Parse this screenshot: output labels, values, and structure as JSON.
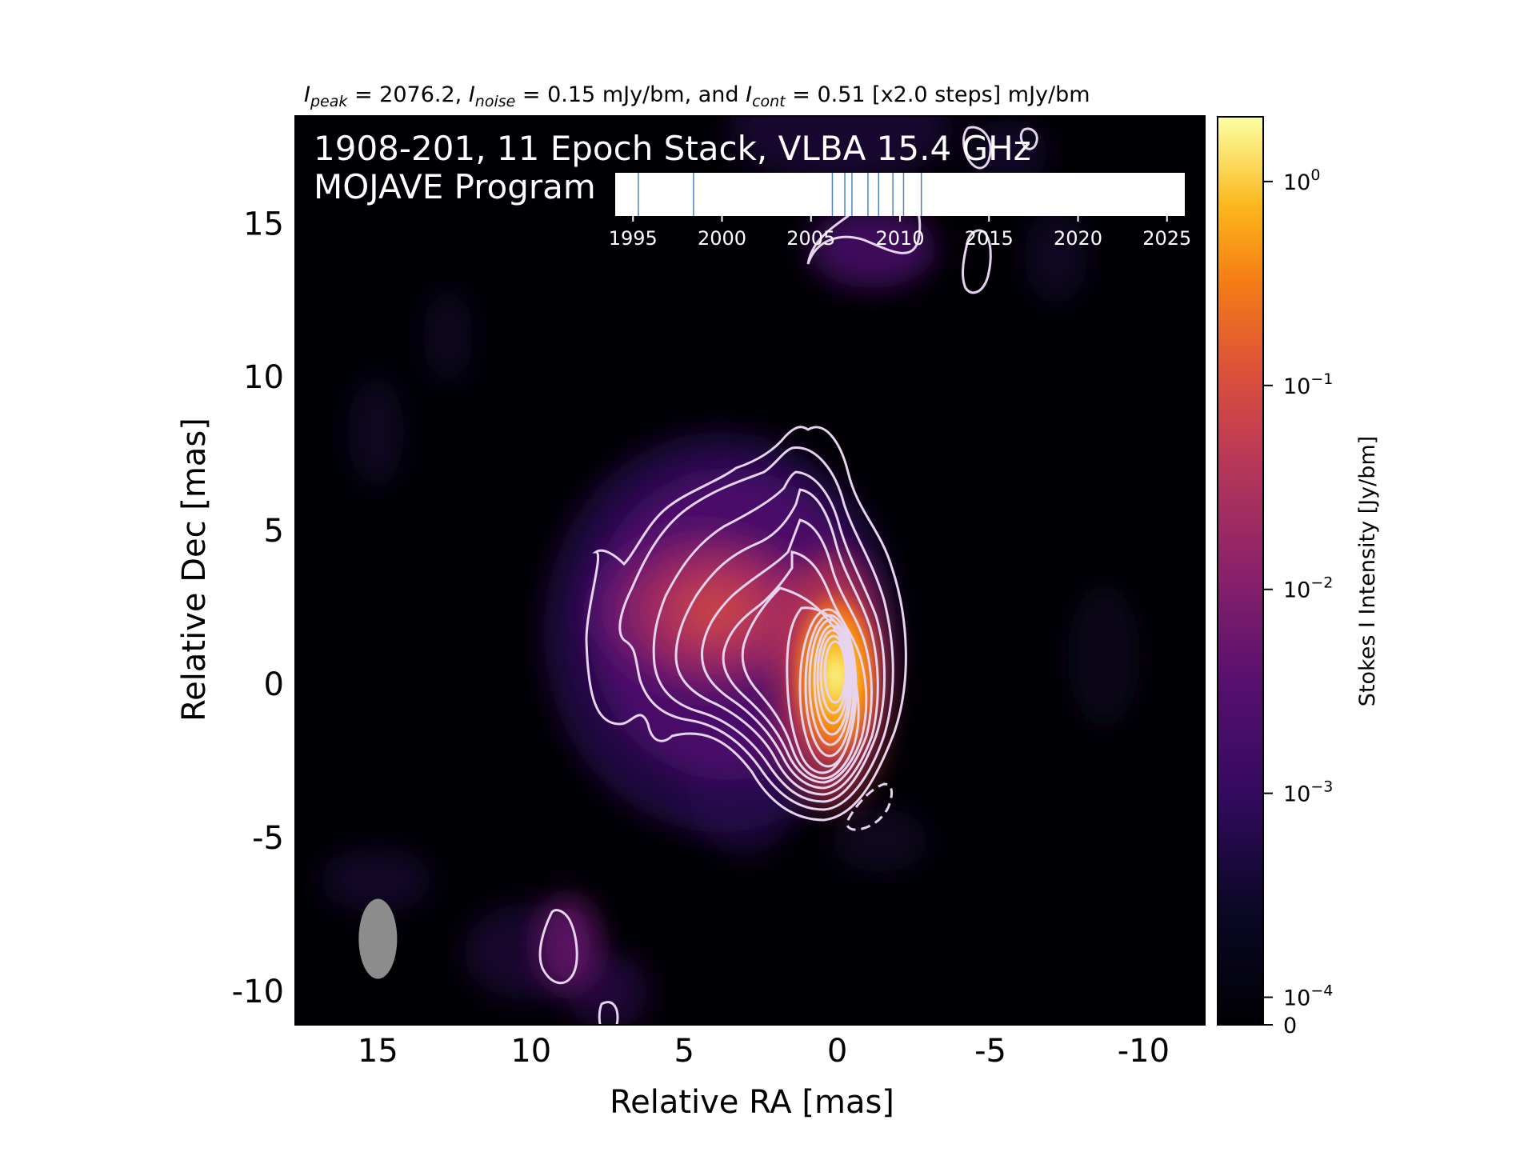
{
  "title": {
    "peak_sym": "I",
    "peak_sub": "peak",
    "peak_val": " = 2076.2, ",
    "noise_sym": "I",
    "noise_sub": "noise",
    "noise_val": " = 0.15 mJy/bm, and ",
    "cont_sym": "I",
    "cont_sub": "cont",
    "cont_val": " = 0.51 [x2.0 steps] mJy/bm"
  },
  "overlay": {
    "line1": "1908-201, 11 Epoch Stack, VLBA 15.4 GHz",
    "line2": "MOJAVE Program"
  },
  "colors": {
    "contour": "#e6d4ee",
    "timeline_line": "#4a86c0",
    "beam": "#8c8c8c"
  },
  "chart_data": {
    "type": "heatmap",
    "colormap": "inferno",
    "xlabel": "Relative RA [mas]",
    "ylabel": "Relative Dec [mas]",
    "xlim": [
      17.7,
      -12.0
    ],
    "ylim": [
      -11.1,
      18.5
    ],
    "xticks": [
      15,
      10,
      5,
      0,
      -5,
      -10
    ],
    "xtick_labels": [
      "15",
      "10",
      "5",
      "0",
      "-5",
      "-10"
    ],
    "yticks": [
      15,
      10,
      5,
      0,
      -5,
      -10
    ],
    "ytick_labels": [
      "15",
      "10",
      "5",
      "0",
      "-5",
      "-10"
    ],
    "colorbar": {
      "label": "Stokes I Intensity [Jy/bm]",
      "scale": "log",
      "ticks": [
        {
          "base": "10",
          "exp": "0",
          "value": 1
        },
        {
          "base": "10",
          "exp": "−1",
          "value": 0.1
        },
        {
          "base": "10",
          "exp": "−2",
          "value": 0.01
        },
        {
          "base": "10",
          "exp": "−3",
          "value": 0.001
        },
        {
          "base": "10",
          "exp": "−4",
          "value": 0.0001
        },
        {
          "base": "0",
          "exp": "",
          "value": 0
        }
      ]
    },
    "beam": {
      "ra": 15.0,
      "dec": -8.3
    },
    "timeline": {
      "xlim": [
        1994,
        2026
      ],
      "ticks": [
        1995,
        2000,
        2005,
        2010,
        2015,
        2020,
        2025
      ],
      "tick_labels": [
        "1995",
        "2000",
        "2005",
        "2010",
        "2015",
        "2020",
        "2025"
      ],
      "epochs": [
        1995.3,
        1998.4,
        2006.2,
        2006.9,
        2007.3,
        2008.2,
        2008.8,
        2009.6,
        2010.2,
        2011.2,
        2011.2
      ]
    }
  }
}
